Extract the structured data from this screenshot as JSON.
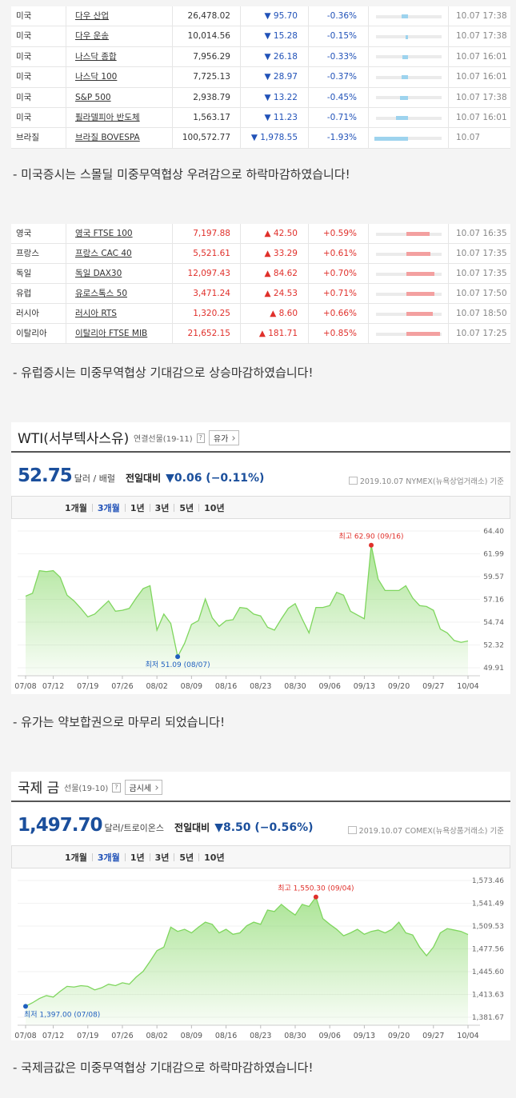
{
  "us_table": {
    "rows": [
      [
        "미국",
        "다우 산업",
        "26,478.02",
        "▼ 95.70",
        "-0.36%",
        "10.07 17:38"
      ],
      [
        "미국",
        "다우 운송",
        "10,014.56",
        "▼ 15.28",
        "-0.15%",
        "10.07 17:38"
      ],
      [
        "미국",
        "나스닥 종합",
        "7,956.29",
        "▼ 26.18",
        "-0.33%",
        "10.07 16:01"
      ],
      [
        "미국",
        "나스닥 100",
        "7,725.13",
        "▼ 28.97",
        "-0.37%",
        "10.07 16:01"
      ],
      [
        "미국",
        "S&P 500",
        "2,938.79",
        "▼ 13.22",
        "-0.45%",
        "10.07 17:38"
      ],
      [
        "미국",
        "필라델피아 반도체",
        "1,563.17",
        "▼ 11.23",
        "-0.71%",
        "10.07 16:01"
      ],
      [
        "브라질",
        "브라질 BOVESPA",
        "100,572.77",
        "▼ 1,978.55",
        "-1.93%",
        "10.07"
      ]
    ],
    "color": "#2152b8",
    "bar_color": "#9dd3ee"
  },
  "us_comment": "- 미국증시는 스몰딜 미중무역협상 우려감으로 하락마감하였습니다!",
  "eu_table": {
    "rows": [
      [
        "영국",
        "영국 FTSE 100",
        "7,197.88",
        "▲ 42.50",
        "+0.59%",
        "10.07 16:35"
      ],
      [
        "프랑스",
        "프랑스 CAC 40",
        "5,521.61",
        "▲ 33.29",
        "+0.61%",
        "10.07 17:35"
      ],
      [
        "독일",
        "독일 DAX30",
        "12,097.43",
        "▲ 84.62",
        "+0.70%",
        "10.07 17:35"
      ],
      [
        "유럽",
        "유로스톡스 50",
        "3,471.24",
        "▲ 24.53",
        "+0.71%",
        "10.07 17:50"
      ],
      [
        "러시아",
        "러시아 RTS",
        "1,320.25",
        "▲ 8.60",
        "+0.66%",
        "10.07 18:50"
      ],
      [
        "이탈리아",
        "이탈리아 FTSE MIB",
        "21,652.15",
        "▲ 181.71",
        "+0.85%",
        "10.07 17:25"
      ]
    ],
    "color": "#e0302b",
    "bar_color": "#f3a0a0"
  },
  "eu_comment": "- 유럽증시는 미중무역협상 기대감으로 상승마감하였습니다!",
  "wti_comment": "-  유가는 약보합권으로 마무리 되었습니다!",
  "gold_comment": "- 국제금값은 미중무역협상 기대감으로 하락마감하였습니다!",
  "chart_data": [
    {
      "type": "line",
      "title": "WTI(서부텍사스유)",
      "subtitle": "연결선물(19-11)",
      "help": "?",
      "button": "유가",
      "price": "52.75",
      "unit": "달러 / 배럴",
      "change_label": "전일대비",
      "change": "▼0.06 (−0.11%)",
      "source": "2019.10.07  NYMEX(뉴욕상업거래소) 기준",
      "tabs": [
        "1개월",
        "3개월",
        "1년",
        "3년",
        "5년",
        "10년"
      ],
      "active_tab": 1,
      "color": "#7fd65e",
      "max_label": "최고 62.90 (09/16)",
      "min_label": "최저 51.09 (08/07)",
      "categories": [
        "07/08",
        null,
        null,
        null,
        "07/12",
        null,
        null,
        null,
        null,
        "07/19",
        null,
        null,
        null,
        null,
        "07/26",
        null,
        null,
        null,
        null,
        "08/02",
        null,
        null,
        null,
        null,
        "08/09",
        null,
        null,
        null,
        null,
        "08/16",
        null,
        null,
        null,
        null,
        "08/23",
        null,
        null,
        null,
        null,
        "08/30",
        null,
        null,
        null,
        null,
        "09/06",
        null,
        null,
        null,
        null,
        "09/13",
        null,
        null,
        null,
        null,
        "09/20",
        null,
        null,
        null,
        null,
        "09/27",
        null,
        null,
        null,
        null,
        "10/04"
      ],
      "values": [
        57.5,
        57.8,
        60.2,
        60.1,
        60.2,
        59.5,
        57.6,
        57.0,
        56.2,
        55.3,
        55.6,
        56.3,
        57.0,
        55.9,
        56.0,
        56.2,
        57.3,
        58.3,
        58.6,
        53.9,
        55.6,
        54.6,
        51.09,
        52.5,
        54.5,
        54.9,
        57.2,
        55.2,
        54.3,
        54.9,
        55.0,
        56.3,
        56.2,
        55.6,
        55.4,
        54.2,
        53.9,
        55.1,
        56.2,
        56.7,
        55.1,
        53.6,
        56.3,
        56.3,
        56.5,
        57.9,
        57.6,
        55.9,
        55.5,
        55.1,
        62.9,
        59.3,
        58.1,
        58.1,
        58.1,
        58.6,
        57.3,
        56.5,
        56.4,
        56.0,
        54.0,
        53.6,
        52.8,
        52.6,
        52.75
      ],
      "ylim": [
        49.91,
        64.4
      ],
      "yticks": [
        {
          "value": 64.4,
          "label": "64.40"
        },
        61.99,
        59.57,
        57.16,
        54.74,
        52.32,
        49.91
      ]
    },
    {
      "type": "line",
      "title": "국제 금",
      "subtitle": "선물(19-10)",
      "button": "금시세",
      "price": "1,497.70",
      "unit": "달러/트로이온스",
      "help": "?",
      "change_label": "전일대비",
      "change": "▼8.50 (−0.56%)",
      "source": "2019.10.07  COMEX(뉴욕상품거래소) 기준",
      "tabs": [
        "1개월",
        "3개월",
        "1년",
        "3년",
        "5년",
        "10년"
      ],
      "active_tab": 1,
      "color": "#7fd65e",
      "max_label": "최고 1,550.30 (09/04)",
      "min_label": "최저 1,397.00 (07/08)",
      "categories": [
        "07/08",
        null,
        null,
        null,
        "07/12",
        null,
        null,
        null,
        null,
        "07/19",
        null,
        null,
        null,
        null,
        "07/26",
        null,
        null,
        null,
        null,
        "08/02",
        null,
        null,
        null,
        null,
        "08/09",
        null,
        null,
        null,
        null,
        "08/16",
        null,
        null,
        null,
        null,
        "08/23",
        null,
        null,
        null,
        null,
        "08/30",
        null,
        null,
        null,
        null,
        "09/06",
        null,
        null,
        null,
        null,
        "09/13",
        null,
        null,
        null,
        null,
        "09/20",
        null,
        null,
        null,
        null,
        "09/27",
        null,
        null,
        null,
        null,
        "10/04"
      ],
      "values": [
        1397,
        1402,
        1408,
        1412,
        1410,
        1418,
        1425,
        1424,
        1426,
        1425,
        1420,
        1423,
        1428,
        1426,
        1430,
        1428,
        1438,
        1446,
        1460,
        1475,
        1480,
        1508,
        1502,
        1505,
        1500,
        1508,
        1515,
        1512,
        1500,
        1505,
        1498,
        1500,
        1510,
        1515,
        1512,
        1532,
        1530,
        1540,
        1532,
        1525,
        1540,
        1537,
        1550.3,
        1520,
        1512,
        1505,
        1496,
        1500,
        1505,
        1498,
        1502,
        1504,
        1500,
        1505,
        1515,
        1500,
        1497,
        1480,
        1468,
        1480,
        1500,
        1506,
        1504,
        1502,
        1497.7
      ],
      "ylim": [
        1381.67,
        1573.46
      ],
      "yticks": [
        {
          "value": 1573.46,
          "label": "1,573.46"
        },
        {
          "value": 1541.49,
          "label": "1,541.49"
        },
        {
          "value": 1509.53,
          "label": "1,509.53"
        },
        {
          "value": 1477.56,
          "label": "1,477.56"
        },
        {
          "value": 1445.6,
          "label": "1,445.60"
        },
        {
          "value": 1413.63,
          "label": "1,413.63"
        },
        {
          "value": 1381.67,
          "label": "1,381.67"
        }
      ]
    }
  ]
}
